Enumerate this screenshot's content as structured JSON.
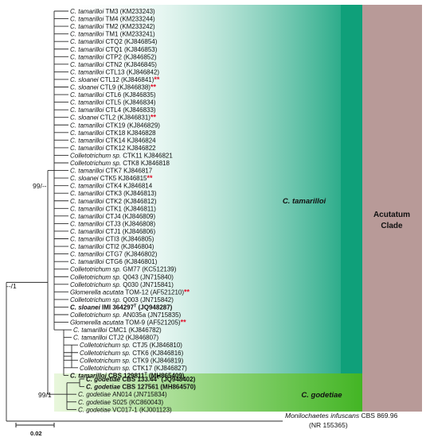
{
  "tree": {
    "tamarilloi_taxa": [
      {
        "genus": "C.",
        "epithet": "tamarilloi",
        "strain": "TM3",
        "accession": "(KM233243)"
      },
      {
        "genus": "C.",
        "epithet": "tamarilloi",
        "strain": "TM4",
        "accession": "(KM233244)"
      },
      {
        "genus": "C.",
        "epithet": "tamarilloi",
        "strain": "TM2",
        "accession": "(KM233242)"
      },
      {
        "genus": "C.",
        "epithet": "tamarilloi",
        "strain": "TM1",
        "accession": "(KM233241)"
      },
      {
        "genus": "C.",
        "epithet": "tamarilloi",
        "strain": "CTQ2",
        "accession": "(KJ846854)"
      },
      {
        "genus": "C.",
        "epithet": "tamarilloi",
        "strain": "CTQ1",
        "accession": "(KJ846853)"
      },
      {
        "genus": "C.",
        "epithet": "tamarilloi",
        "strain": "CTP2",
        "accession": "(KJ846852)"
      },
      {
        "genus": "C.",
        "epithet": "tamarilloi",
        "strain": "CTN2",
        "accession": "(KJ846845)"
      },
      {
        "genus": "C.",
        "epithet": "tamarilloi",
        "strain": "CTL13",
        "accession": "(KJ846842)"
      },
      {
        "genus": "C.",
        "epithet": "sloanei",
        "strain": "CTL12",
        "accession": "(KJ846841)",
        "marker": "**"
      },
      {
        "genus": "C.",
        "epithet": "sloanei",
        "strain": "CTL9",
        "accession": "(KJ846838)",
        "marker": "**"
      },
      {
        "genus": "C.",
        "epithet": "tamarilloi",
        "strain": "CTL6",
        "accession": "(KJ846835)"
      },
      {
        "genus": "C.",
        "epithet": "tamarilloi",
        "strain": "CTL5",
        "accession": "(KJ846834)"
      },
      {
        "genus": "C.",
        "epithet": "tamarilloi",
        "strain": "CTL4",
        "accession": "(KJ846833)"
      },
      {
        "genus": "C.",
        "epithet": "sloanei",
        "strain": "CTL2",
        "accession": "(KJ846831)",
        "marker": "**"
      },
      {
        "genus": "C.",
        "epithet": "tamarilloi",
        "strain": "CTK19",
        "accession": "(KJ846829)"
      },
      {
        "genus": "C.",
        "epithet": "tamarilloi",
        "strain": "CTK18",
        "accession": "KJ846828"
      },
      {
        "genus": "C.",
        "epithet": "tamarilloi",
        "strain": "CTK14",
        "accession": "KJ846824"
      },
      {
        "genus": "C.",
        "epithet": "tamarilloi",
        "strain": "CTK12",
        "accession": "KJ846822"
      },
      {
        "genus": "Colletotrichum",
        "epithet": "sp.",
        "strain": "CTK11",
        "accession": "KJ846821"
      },
      {
        "genus": "Colletotrichum",
        "epithet": "sp.",
        "strain": "CTK8",
        "accession": "KJ846818"
      },
      {
        "genus": "C.",
        "epithet": "tamarilloi",
        "strain": "CTK7",
        "accession": "KJ846817"
      },
      {
        "genus": "C.",
        "epithet": "sloanei",
        "strain": "CTK5",
        "accession": "KJ846815",
        "marker": "**"
      },
      {
        "genus": "C.",
        "epithet": "tamarilloi",
        "strain": "CTK4",
        "accession": "KJ846814"
      },
      {
        "genus": "C.",
        "epithet": "tamarilloi",
        "strain": "CTK3",
        "accession": "(KJ846813)"
      },
      {
        "genus": "C.",
        "epithet": "tamarilloi",
        "strain": "CTK2",
        "accession": "(KJ846812)"
      },
      {
        "genus": "C.",
        "epithet": "tamarilloi",
        "strain": "CTK1",
        "accession": "(KJ846811)"
      },
      {
        "genus": "C.",
        "epithet": "tamarilloi",
        "strain": "CTJ4",
        "accession": "(KJ846809)"
      },
      {
        "genus": "C.",
        "epithet": "tamarilloi",
        "strain": "CTJ3",
        "accession": "(KJ846808)"
      },
      {
        "genus": "C.",
        "epithet": "tamarilloi",
        "strain": "CTJ1",
        "accession": "(KJ846806)"
      },
      {
        "genus": "C.",
        "epithet": "tamarilloi",
        "strain": "CTI3",
        "accession": "(KJ846805)"
      },
      {
        "genus": "C.",
        "epithet": "tamarilloi",
        "strain": "CTI2",
        "accession": "(KJ846804)"
      },
      {
        "genus": "C.",
        "epithet": "tamarilloi",
        "strain": "CTG7",
        "accession": "(KJ846802)"
      },
      {
        "genus": "C.",
        "epithet": "tamarilloi",
        "strain": "CTG6",
        "accession": "(KJ846801)"
      },
      {
        "genus": "Colletotrichum",
        "epithet": "sp.",
        "strain": "GM77",
        "accession": "(KC512139)"
      },
      {
        "genus": "Colletotrichum",
        "epithet": "sp.",
        "strain": "Q043",
        "accession": "(JN715840)"
      },
      {
        "genus": "Colletotrichum",
        "epithet": "sp.",
        "strain": "Q030",
        "accession": "(JN715841)"
      },
      {
        "genus": "Glomerella",
        "epithet": "acutata",
        "strain": "TOM-12",
        "accession": "(AF521210)",
        "marker": "**"
      },
      {
        "genus": "Colletotrichum",
        "epithet": "sp.",
        "strain": "Q003",
        "accession": "(JN715842)"
      },
      {
        "genus": "C.",
        "epithet": "sloanei",
        "strain": "IMI 364297",
        "accession": "(JQ948287)",
        "bold": true,
        "type_mark": "T"
      },
      {
        "genus": "Colletotrichum",
        "epithet": "sp.",
        "strain": "AN035a",
        "accession": "(JN715835)"
      },
      {
        "genus": "Glomerella",
        "epithet": "acutata",
        "strain": "TOM-9",
        "accession": "(AF521205)",
        "marker": "**"
      },
      {
        "genus": "C.",
        "epithet": "tamarilloi",
        "strain": "CMC1",
        "accession": "(KJ846782)"
      },
      {
        "genus": "C.",
        "epithet": "tamarilloi",
        "strain": "CTJ2",
        "accession": "(KJ846807)"
      },
      {
        "genus": "Colletotrichum",
        "epithet": "sp.",
        "strain": "CTJ5",
        "accession": "(KJ846810)"
      },
      {
        "genus": "Colletotrichum",
        "epithet": "sp.",
        "strain": "CTK6",
        "accession": "(KJ846816)"
      },
      {
        "genus": "Colletotrichum",
        "epithet": "sp.",
        "strain": "CTK9",
        "accession": "(KJ846819)"
      },
      {
        "genus": "Colletotrichum",
        "epithet": "sp.",
        "strain": "CTK17",
        "accession": "(KJ846827)"
      },
      {
        "genus": "C.",
        "epithet": "tamarilloi",
        "strain": "CBS 129811",
        "accession": "(MH865409)",
        "bold": true,
        "type_mark": "T"
      }
    ],
    "godetiae_taxa": [
      {
        "genus": "C.",
        "epithet": "godetiae",
        "strain": "CBS 133.44",
        "accession": "(JQ948402)",
        "bold": true,
        "type_mark": "T"
      },
      {
        "genus": "C.",
        "epithet": "godetiae",
        "strain": "CBS 127561",
        "accession": "(MH864570)",
        "bold": true
      },
      {
        "genus": "C.",
        "epithet": "godetiae",
        "strain": "AN014",
        "accession": "(JN715834)"
      },
      {
        "genus": "C.",
        "epithet": "godetiae",
        "strain": "S025",
        "accession": "(KC860043)"
      },
      {
        "genus": "C.",
        "epithet": "godetiae",
        "strain": "VC017-1",
        "accession": "(KJ001123)"
      }
    ],
    "outgroup": {
      "genus": "Monilochaetes",
      "epithet": "infuscans",
      "strain": "CBS 869.96",
      "accession": "(NR 155365)"
    }
  },
  "support_values": {
    "tamarilloi_node": "99/--",
    "godetiae_node": "99/1",
    "root_node": "--/1"
  },
  "clades": {
    "tamarilloi": {
      "label": "C. tamarilloi",
      "color": "#13a07c"
    },
    "godetiae": {
      "label": "C. godetiae",
      "color": "#4cb82a"
    },
    "acutatum": {
      "label_line1": "Acutatum",
      "label_line2": "Clade",
      "color": "#b89a98"
    }
  },
  "scale_bar": {
    "label": "0.02"
  }
}
